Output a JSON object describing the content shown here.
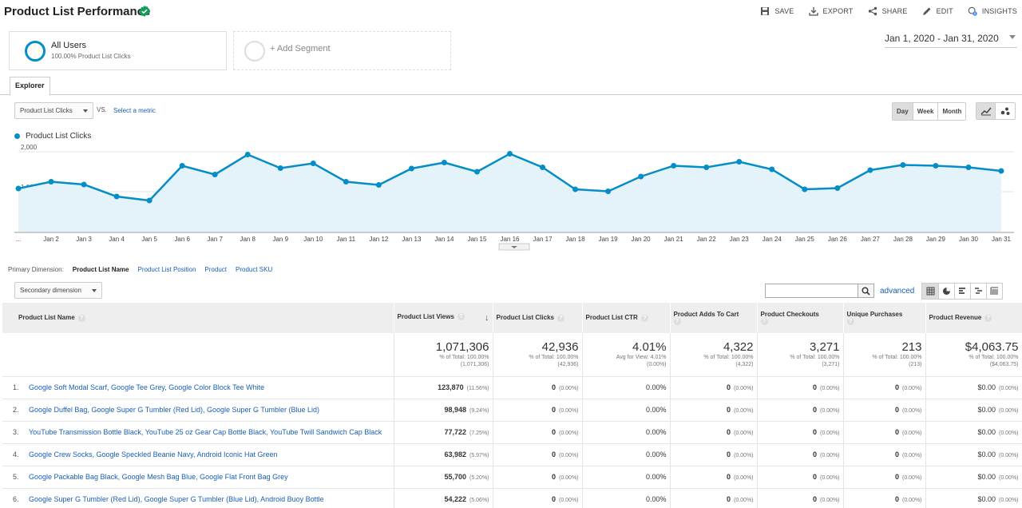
{
  "header": {
    "title": "Product List Performance",
    "actions": [
      {
        "label": "SAVE",
        "icon": "save-icon"
      },
      {
        "label": "EXPORT",
        "icon": "export-icon"
      },
      {
        "label": "SHARE",
        "icon": "share-icon"
      },
      {
        "label": "EDIT",
        "icon": "edit-icon"
      },
      {
        "label": "INSIGHTS",
        "icon": "insights-icon"
      }
    ]
  },
  "segments": {
    "all_users": {
      "title": "All Users",
      "subtitle": "100.00% Product List Clicks"
    },
    "add_segment": "+ Add Segment"
  },
  "date_range": "Jan 1, 2020 - Jan 31, 2020",
  "tabs": {
    "explorer": "Explorer"
  },
  "metric": {
    "selected": "Product List Clicks",
    "vs": "VS.",
    "select_metric": "Select a metric"
  },
  "granularity": {
    "day": "Day",
    "week": "Week",
    "month": "Month"
  },
  "chart_data": {
    "type": "area",
    "series": [
      {
        "name": "Product List Clicks",
        "color": "#058dc7",
        "values": [
          1080,
          1250,
          1180,
          880,
          780,
          1650,
          1430,
          1930,
          1590,
          1710,
          1250,
          1170,
          1580,
          1730,
          1500,
          1950,
          1610,
          1060,
          1010,
          1380,
          1650,
          1610,
          1750,
          1560,
          1060,
          1090,
          1540,
          1670,
          1650,
          1610,
          1520
        ]
      }
    ],
    "x": [
      "...",
      "Jan 2",
      "Jan 3",
      "Jan 4",
      "Jan 5",
      "Jan 6",
      "Jan 7",
      "Jan 8",
      "Jan 9",
      "Jan 10",
      "Jan 11",
      "Jan 12",
      "Jan 13",
      "Jan 14",
      "Jan 15",
      "Jan 16",
      "Jan 17",
      "Jan 18",
      "Jan 19",
      "Jan 20",
      "Jan 21",
      "Jan 22",
      "Jan 23",
      "Jan 24",
      "Jan 25",
      "Jan 26",
      "Jan 27",
      "Jan 28",
      "Jan 29",
      "Jan 30",
      "Jan 31"
    ],
    "y_ticks": [
      "2,000",
      "1,000"
    ],
    "ylim": [
      0,
      2200
    ],
    "grid": true
  },
  "primary_dimension": {
    "label": "Primary Dimension:",
    "active": "Product List Name",
    "options": [
      "Product List Position",
      "Product",
      "Product SKU"
    ]
  },
  "secondary_dimension": "Secondary dimension",
  "advanced": "advanced",
  "table": {
    "columns": [
      "Product List Name",
      "Product List Views",
      "Product List Clicks",
      "Product List CTR",
      "Product Adds To Cart",
      "Product Checkouts",
      "Unique Purchases",
      "Product Revenue"
    ],
    "totals": [
      {
        "main": "1,071,306",
        "sub1": "% of Total: 100.00%",
        "sub2": "(1,071,306)"
      },
      {
        "main": "42,936",
        "sub1": "% of Total: 100.00%",
        "sub2": "(42,936)"
      },
      {
        "main": "4.01%",
        "sub1": "Avg for View: 4.01%",
        "sub2": "(0.00%)"
      },
      {
        "main": "4,322",
        "sub1": "% of Total: 100.00%",
        "sub2": "(4,322)"
      },
      {
        "main": "3,271",
        "sub1": "% of Total: 100.00%",
        "sub2": "(3,271)"
      },
      {
        "main": "213",
        "sub1": "% of Total: 100.00%",
        "sub2": "(213)"
      },
      {
        "main": "$4,063.75",
        "sub1": "% of Total: 100.00%",
        "sub2": "($4,063.75)"
      }
    ],
    "rows": [
      {
        "n": "1.",
        "name": "Google Soft Modal Scarf, Google Tee Grey, Google Color Block Tee White",
        "views": "123,870",
        "views_pct": "(11.56%)"
      },
      {
        "n": "2.",
        "name": "Google Duffel Bag, Google Super G Tumbler (Red Lid), Google Super G Tumbler (Blue Lid)",
        "views": "98,948",
        "views_pct": "(9.24%)"
      },
      {
        "n": "3.",
        "name": "YouTube Transmission Bottle Black, YouTube 25 oz Gear Cap Bottle Black, YouTube Twill Sandwich Cap Black",
        "views": "77,722",
        "views_pct": "(7.25%)"
      },
      {
        "n": "4.",
        "name": "Google Crew Socks, Google Speckled Beanie Navy, Android Iconic Hat Green",
        "views": "63,982",
        "views_pct": "(5.97%)"
      },
      {
        "n": "5.",
        "name": "Google Packable Bag Black, Google Mesh Bag Blue, Google Flat Front Bag Grey",
        "views": "55,700",
        "views_pct": "(5.20%)"
      },
      {
        "n": "6.",
        "name": "Google Super G Tumbler (Red Lid), Google Super G Tumbler (Blue Lid), Android Buoy Bottle",
        "views": "54,222",
        "views_pct": "(5.06%)"
      }
    ],
    "zero_count": "0",
    "zero_pct": "(0.00%)",
    "zero_ctr": "0.00%",
    "zero_rev": "$0.00"
  }
}
